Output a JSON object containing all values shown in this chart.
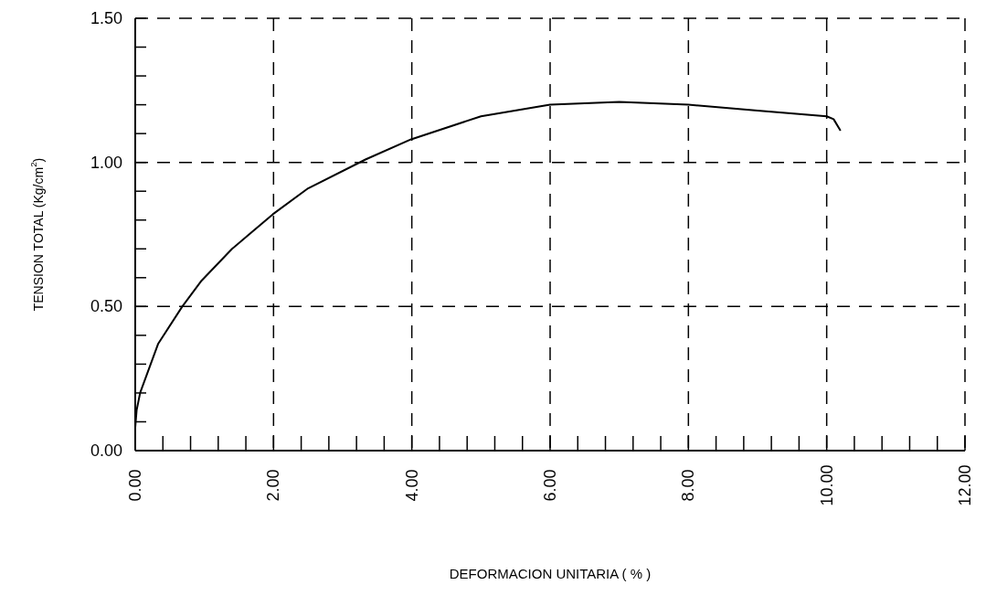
{
  "chart_data": {
    "type": "line",
    "xlabel": "DEFORMACION UNITARIA ( % )",
    "ylabel": "TENSION TOTAL (Kg/cm$^{2}$)",
    "x": [
      0,
      0.02,
      0.07,
      0.33,
      0.68,
      0.96,
      1.4,
      1.99,
      2.5,
      3.33,
      3.99,
      5,
      6,
      7,
      8,
      9,
      10,
      10.1,
      10.2
    ],
    "series": [
      {
        "color": "#000000",
        "values": [
          0.08,
          0.14,
          0.2,
          0.37,
          0.5,
          0.59,
          0.7,
          0.82,
          0.91,
          1.01,
          1.08,
          1.16,
          1.2,
          1.21,
          1.2,
          1.18,
          1.16,
          1.15,
          1.11
        ]
      }
    ],
    "xlim": [
      0,
      12
    ],
    "ylim": [
      0,
      1.5
    ],
    "xticks": [
      {
        "value": 0,
        "label": "0.00"
      },
      {
        "value": 0.4,
        "label": null
      },
      {
        "value": 0.8,
        "label": null
      },
      {
        "value": 1.2,
        "label": null
      },
      {
        "value": 1.6,
        "label": null
      },
      {
        "value": 2,
        "label": "2.00"
      },
      {
        "value": 2.4,
        "label": null
      },
      {
        "value": 2.8,
        "label": null
      },
      {
        "value": 3.2,
        "label": null
      },
      {
        "value": 3.6,
        "label": null
      },
      {
        "value": 4,
        "label": "4.00"
      },
      {
        "value": 4.4,
        "label": null
      },
      {
        "value": 4.8,
        "label": null
      },
      {
        "value": 5.2,
        "label": null
      },
      {
        "value": 5.6,
        "label": null
      },
      {
        "value": 6,
        "label": "6.00"
      },
      {
        "value": 6.4,
        "label": null
      },
      {
        "value": 6.8,
        "label": null
      },
      {
        "value": 7.2,
        "label": null
      },
      {
        "value": 7.6,
        "label": null
      },
      {
        "value": 8,
        "label": "8.00"
      },
      {
        "value": 8.4,
        "label": null
      },
      {
        "value": 8.8,
        "label": null
      },
      {
        "value": 9.2,
        "label": null
      },
      {
        "value": 9.6,
        "label": null
      },
      {
        "value": 10,
        "label": "10.00"
      },
      {
        "value": 10.4,
        "label": null
      },
      {
        "value": 10.8,
        "label": null
      },
      {
        "value": 11.2,
        "label": null
      },
      {
        "value": 11.6,
        "label": null
      },
      {
        "value": 12,
        "label": "12.00"
      }
    ],
    "yticks": [
      {
        "value": 0,
        "label": "0.00"
      },
      {
        "value": 0.1,
        "label": null
      },
      {
        "value": 0.2,
        "label": null
      },
      {
        "value": 0.3,
        "label": null
      },
      {
        "value": 0.4,
        "label": null
      },
      {
        "value": 0.5,
        "label": "0.50"
      },
      {
        "value": 0.6,
        "label": null
      },
      {
        "value": 0.7,
        "label": null
      },
      {
        "value": 0.8,
        "label": null
      },
      {
        "value": 0.9,
        "label": null
      },
      {
        "value": 1,
        "label": "1.00"
      },
      {
        "value": 1.1,
        "label": null
      },
      {
        "value": 1.2,
        "label": null
      },
      {
        "value": 1.3,
        "label": null
      },
      {
        "value": 1.4,
        "label": null
      },
      {
        "value": 1.5,
        "label": "1.50"
      }
    ],
    "grid": true,
    "line_style": "solid",
    "marker": "none"
  }
}
